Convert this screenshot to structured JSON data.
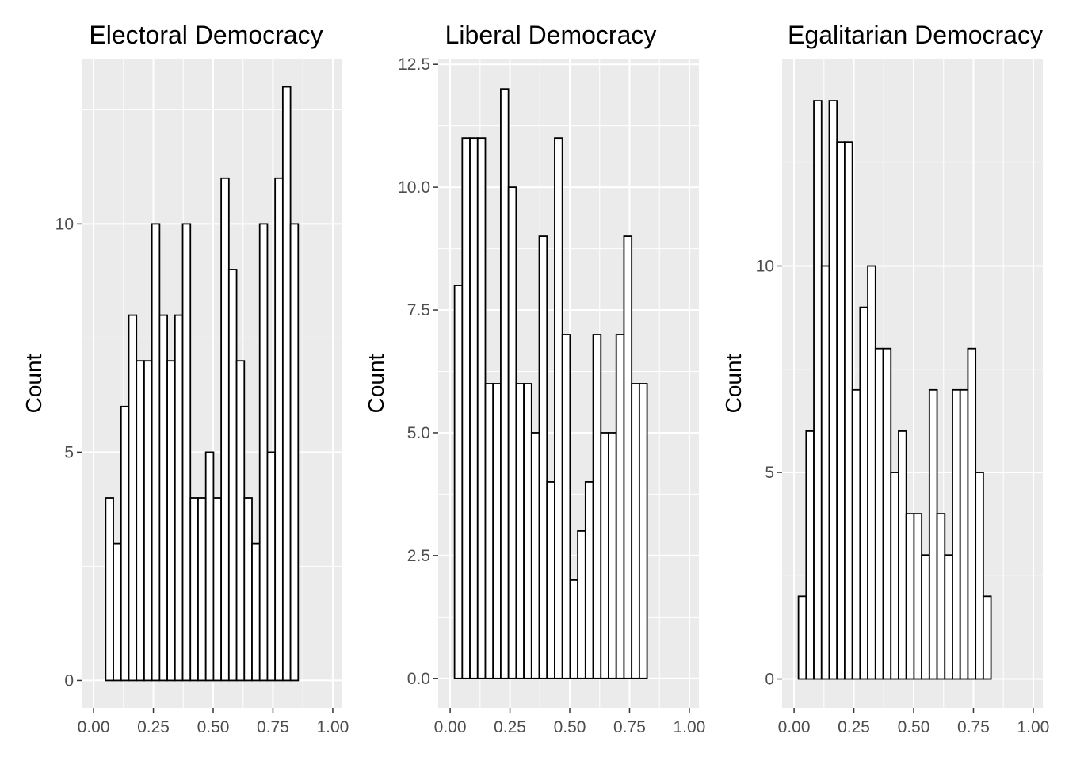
{
  "chart_data": [
    {
      "type": "histogram",
      "title": "Electoral Democracy",
      "xlabel": "",
      "ylabel": "Count",
      "xlim": [
        -0.05,
        1.04
      ],
      "ylim": [
        -0.6,
        13.6
      ],
      "x_ticks": [
        0,
        0.25,
        0.5,
        0.75,
        1
      ],
      "x_tick_labels": [
        "0.00",
        "0.25",
        "0.50",
        "0.75",
        "1.00"
      ],
      "y_ticks": [
        0,
        5,
        10
      ],
      "y_tick_labels": [
        "0",
        "5",
        "10"
      ],
      "bin_width": 0.0322,
      "bin_start": 0.0183,
      "values": [
        0,
        4,
        3,
        6,
        8,
        7,
        7,
        10,
        8,
        7,
        8,
        10,
        4,
        4,
        5,
        4,
        11,
        9,
        7,
        4,
        3,
        10,
        5,
        11,
        13,
        10,
        0,
        0,
        0,
        0
      ],
      "fill": "#ffffff",
      "stroke": "#000000",
      "panel_background": "#ebebeb",
      "grid": true
    },
    {
      "type": "histogram",
      "title": "Liberal Democracy",
      "xlabel": "",
      "ylabel": "Count",
      "xlim": [
        -0.05,
        1.04
      ],
      "ylim": [
        -0.6,
        12.6
      ],
      "x_ticks": [
        0,
        0.25,
        0.5,
        0.75,
        1
      ],
      "x_tick_labels": [
        "0.00",
        "0.25",
        "0.50",
        "0.75",
        "1.00"
      ],
      "y_ticks": [
        0,
        2.5,
        5,
        7.5,
        10,
        12.5
      ],
      "y_tick_labels": [
        "0.0",
        "2.5",
        "5.0",
        "7.5",
        "10.0",
        "12.5"
      ],
      "bin_width": 0.0322,
      "bin_start": 0.0183,
      "values": [
        8,
        11,
        11,
        11,
        6,
        6,
        12,
        10,
        6,
        6,
        5,
        9,
        4,
        11,
        7,
        2,
        3,
        4,
        7,
        5,
        5,
        7,
        9,
        6,
        6,
        0,
        0,
        0,
        0,
        0
      ],
      "fill": "#ffffff",
      "stroke": "#000000",
      "panel_background": "#ebebeb",
      "grid": true
    },
    {
      "type": "histogram",
      "title": "Egalitarian Democracy",
      "xlabel": "",
      "ylabel": "Count",
      "xlim": [
        -0.05,
        1.04
      ],
      "ylim": [
        -0.7,
        15.0
      ],
      "x_ticks": [
        0,
        0.25,
        0.5,
        0.75,
        1
      ],
      "x_tick_labels": [
        "0.00",
        "0.25",
        "0.50",
        "0.75",
        "1.00"
      ],
      "y_ticks": [
        0,
        5,
        10
      ],
      "y_tick_labels": [
        "0",
        "5",
        "10"
      ],
      "bin_width": 0.0322,
      "bin_start": 0.0183,
      "values": [
        2,
        6,
        14,
        10,
        14,
        13,
        13,
        7,
        9,
        10,
        8,
        8,
        5,
        6,
        4,
        4,
        3,
        7,
        4,
        3,
        7,
        7,
        8,
        5,
        2,
        0,
        0,
        0,
        0,
        0
      ],
      "fill": "#ffffff",
      "stroke": "#000000",
      "panel_background": "#ebebeb",
      "grid": true
    }
  ]
}
